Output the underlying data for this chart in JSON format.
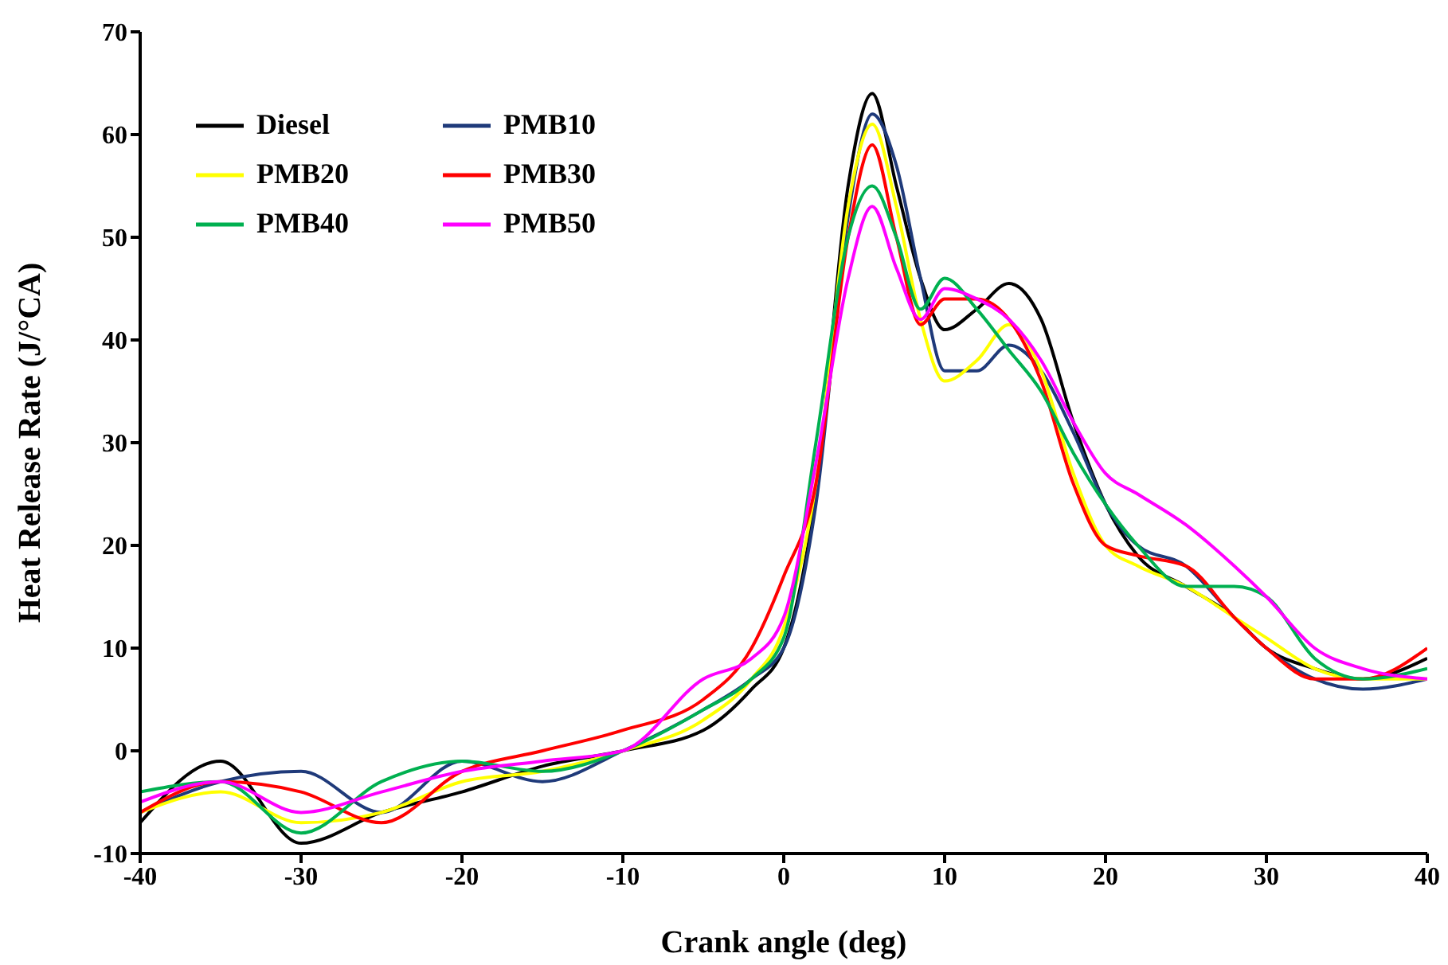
{
  "chart_data": {
    "type": "line",
    "xlabel": "Crank angle (deg)",
    "ylabel": "Heat Release Rate (J/°CA)",
    "x": [
      -40,
      -35,
      -30,
      -25,
      -20,
      -15,
      -10,
      -5,
      -2,
      0,
      2,
      4,
      5.5,
      7,
      8.5,
      10,
      12,
      14,
      16,
      18,
      20,
      22,
      25,
      28,
      30,
      33,
      36,
      40
    ],
    "series": [
      {
        "name": "Diesel",
        "color": "#000000",
        "values": [
          -7,
          -1,
          -9,
          -6,
          -4,
          -1.5,
          0,
          2,
          6,
          10,
          25,
          55,
          64,
          55,
          46,
          41,
          43,
          45.5,
          42,
          32,
          24,
          19,
          16,
          13,
          10,
          8,
          7,
          9
        ]
      },
      {
        "name": "PMB10",
        "color": "#1f3a7a",
        "values": [
          -6,
          -3,
          -2,
          -6,
          -1,
          -3,
          0,
          4,
          7,
          10,
          24,
          52,
          62,
          57,
          46,
          37,
          37,
          39.5,
          37,
          31,
          24,
          20,
          18,
          13,
          10,
          7,
          6,
          7
        ]
      },
      {
        "name": "PMB20",
        "color": "#ffff00",
        "values": [
          -6,
          -4,
          -7,
          -6,
          -3,
          -2,
          0,
          3,
          7,
          12,
          26,
          53,
          61,
          53,
          42,
          36,
          38,
          41.5,
          37,
          27,
          20,
          18,
          16,
          13,
          11,
          8,
          7,
          7
        ]
      },
      {
        "name": "PMB30",
        "color": "#ff0000",
        "values": [
          -6,
          -3,
          -4,
          -7,
          -2,
          0,
          2,
          5,
          10,
          17,
          26,
          50,
          59,
          50,
          41.5,
          44,
          44,
          42,
          36,
          26,
          20,
          19,
          18,
          13,
          10,
          7,
          7,
          10
        ]
      },
      {
        "name": "PMB40",
        "color": "#00b050",
        "values": [
          -4,
          -3,
          -8,
          -3,
          -1,
          -2,
          0,
          4,
          7,
          11,
          30,
          50,
          55,
          50,
          43,
          46,
          43,
          39,
          35,
          29,
          24,
          20,
          16,
          16,
          15,
          9,
          7,
          8
        ]
      },
      {
        "name": "PMB50",
        "color": "#ff00ff",
        "values": [
          -5,
          -3,
          -6,
          -4,
          -2,
          -1,
          0,
          7,
          9,
          13,
          28,
          46,
          53,
          47,
          42,
          45,
          44,
          42,
          38,
          32,
          27,
          25,
          22,
          18,
          15,
          10,
          8,
          7
        ]
      }
    ],
    "xlim": [
      -40,
      40
    ],
    "xticks": [
      -40,
      -30,
      -20,
      -10,
      0,
      10,
      20,
      30,
      40
    ],
    "ylim": [
      -10,
      70
    ],
    "yticks": [
      -10,
      0,
      10,
      20,
      30,
      40,
      50,
      60,
      70
    ],
    "grid": false,
    "legend": "top left",
    "marker": "none",
    "line_style": "solid"
  }
}
